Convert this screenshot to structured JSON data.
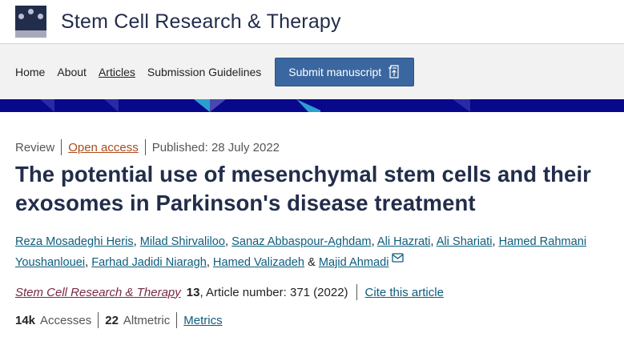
{
  "journal": {
    "title": "Stem Cell Research & Therapy"
  },
  "nav": {
    "items": [
      {
        "label": "Home"
      },
      {
        "label": "About"
      },
      {
        "label": "Articles"
      },
      {
        "label": "Submission Guidelines"
      }
    ],
    "submit_label": "Submit manuscript"
  },
  "article": {
    "type": "Review",
    "access": "Open access",
    "published": "Published: 28 July 2022",
    "title": "The potential use of mesenchymal stem cells and their exosomes in Parkinson's disease treatment",
    "authors": [
      "Reza Mosadeghi Heris",
      "Milad Shirvaliloo",
      "Sanaz Abbaspour-Aghdam",
      "Ali Hazrati",
      "Ali Shariati",
      "Hamed Rahmani Youshanlouei",
      "Farhad Jadidi Niaragh",
      "Hamed Valizadeh",
      "Majid Ahmadi"
    ],
    "journal_name": "Stem Cell Research & Therapy",
    "volume": "13",
    "article_number": ", Article number: 371 (2022)",
    "cite_label": "Cite this article",
    "accesses": "14k",
    "accesses_label": "Accesses",
    "altmetric": "22",
    "altmetric_label": "Altmetric",
    "metrics_label": "Metrics"
  },
  "colors": {
    "brand": "#222d4b",
    "button": "#3a679f",
    "banner": "#08088c",
    "link": "#0c5c7c",
    "open_access": "#a94c1c"
  }
}
